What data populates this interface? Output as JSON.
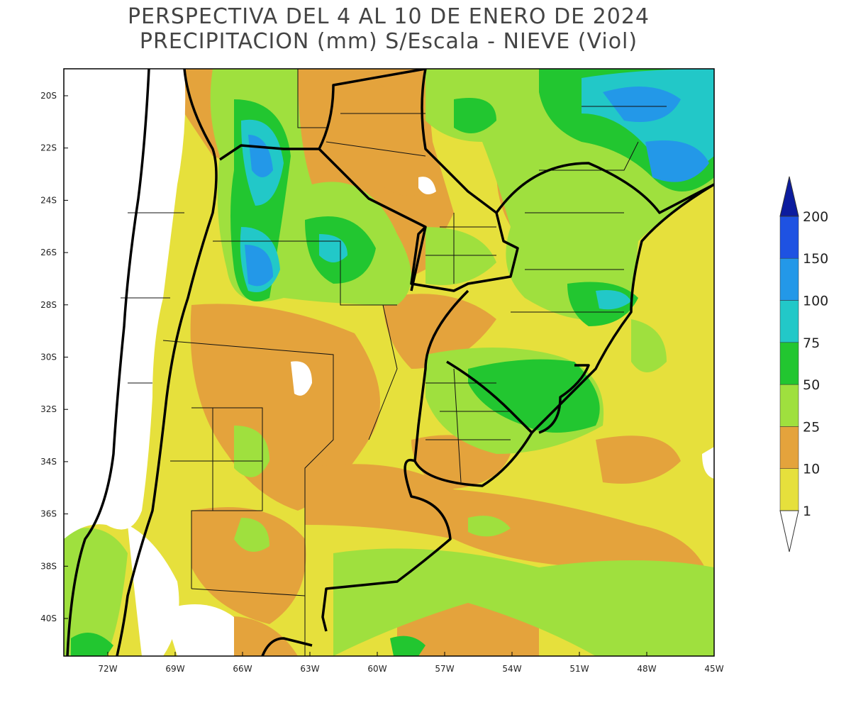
{
  "title": "PERSPECTIVA DEL 4 AL 10 DE ENERO DE 2024",
  "subtitle": "PRECIPITACION (mm) S/Escala - NIEVE (Viol)",
  "lat_labels": [
    "20S",
    "22S",
    "24S",
    "26S",
    "28S",
    "30S",
    "32S",
    "34S",
    "36S",
    "38S",
    "40S"
  ],
  "lon_labels": [
    "72W",
    "69W",
    "66W",
    "63W",
    "60W",
    "57W",
    "54W",
    "51W",
    "48W",
    "45W"
  ],
  "colorbar": {
    "levels": [
      1,
      10,
      25,
      50,
      75,
      100,
      150,
      200
    ],
    "colors": [
      "#e6e03c",
      "#e4a33c",
      "#9fe03e",
      "#22c630",
      "#22c8c8",
      "#2398e8",
      "#1e52e2",
      "#0c1c9e"
    ]
  }
}
